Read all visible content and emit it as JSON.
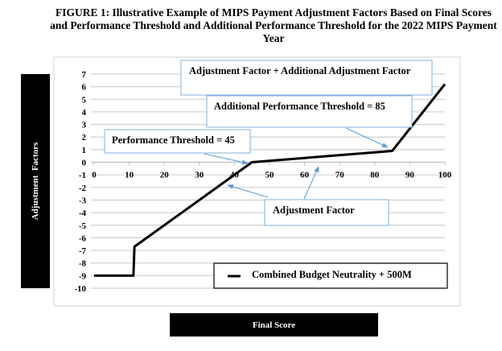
{
  "chart_data": {
    "type": "line",
    "title": "FIGURE 1: Illustrative Example of MIPS Payment Adjustment Factors Based on Final Scores and Performance Threshold and Additional Performance Threshold for the 2022 MIPS Payment Year",
    "xlabel": "Final Score",
    "ylabel": "Adjustment  Factors",
    "xlim": [
      0,
      100
    ],
    "ylim": [
      -10,
      7
    ],
    "xticks": [
      0,
      10,
      20,
      30,
      40,
      50,
      60,
      70,
      80,
      90,
      100
    ],
    "yticks": [
      7,
      6,
      5,
      4,
      3,
      2,
      1,
      0,
      -1,
      -2,
      -3,
      -4,
      -5,
      -6,
      -7,
      -8,
      -9,
      -10
    ],
    "grid": true,
    "legend": "bottom-right",
    "series": [
      {
        "name": "Combined Budget Neutrality + 500M",
        "x": [
          0,
          11.2,
          11.5,
          45,
          85,
          100
        ],
        "y": [
          -9,
          -9,
          -6.7,
          0,
          0.9,
          6.2
        ]
      }
    ],
    "annotations": [
      {
        "text": "Adjustment Factor + Additional Adjustment Factor"
      },
      {
        "text": "Additional Performance Threshold = 85",
        "points_to": [
          85,
          0.9
        ]
      },
      {
        "text": "Performance Threshold = 45",
        "points_to": [
          45,
          0
        ]
      },
      {
        "text": "Adjustment Factor",
        "points_to": [
          [
            38,
            -1.5
          ],
          [
            64,
            0.4
          ]
        ]
      }
    ],
    "colors": {
      "line": "#000000",
      "annotation_border": "#5b9bd5",
      "grid": "#d0d0d0"
    }
  }
}
